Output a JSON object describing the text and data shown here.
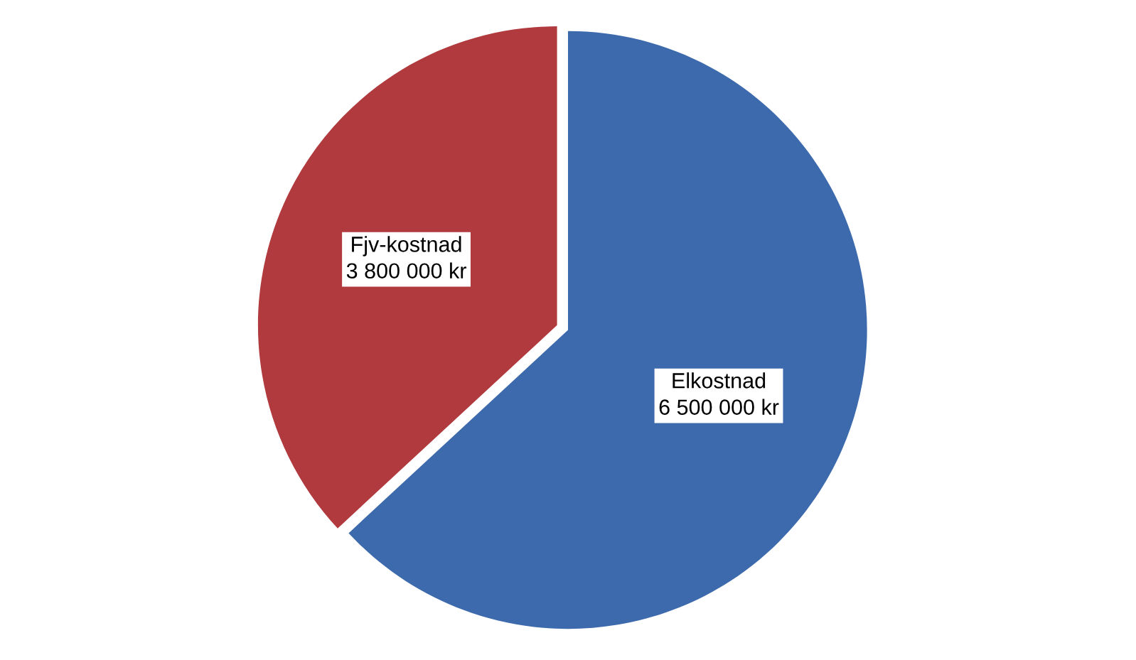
{
  "chart_data": {
    "type": "pie",
    "categories": [
      "Elkostnad",
      "Fjv-kostnad"
    ],
    "values": [
      6500000,
      3800000
    ],
    "colors": [
      "#3d6aad",
      "#b03a3d"
    ],
    "value_labels": [
      "6 500 000 kr",
      "3 800 000 kr"
    ]
  }
}
